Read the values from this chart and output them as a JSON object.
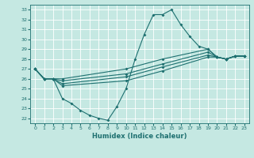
{
  "title": "",
  "xlabel": "Humidex (Indice chaleur)",
  "bg_color": "#c5e8e2",
  "line_color": "#1e7070",
  "grid_color": "#ffffff",
  "xlim": [
    -0.5,
    23.5
  ],
  "ylim": [
    21.5,
    33.5
  ],
  "xticks": [
    0,
    1,
    2,
    3,
    4,
    5,
    6,
    7,
    8,
    9,
    10,
    11,
    12,
    13,
    14,
    15,
    16,
    17,
    18,
    19,
    20,
    21,
    22,
    23
  ],
  "yticks": [
    22,
    23,
    24,
    25,
    26,
    27,
    28,
    29,
    30,
    31,
    32,
    33
  ],
  "line_big_x": [
    0,
    1,
    2,
    3,
    4,
    5,
    6,
    7,
    8,
    9,
    10,
    11,
    12,
    13,
    14,
    15,
    16,
    17,
    18,
    19,
    20,
    21,
    22,
    23
  ],
  "line_big_y": [
    27,
    26,
    26,
    24.0,
    23.5,
    22.8,
    22.3,
    22.0,
    21.8,
    23.2,
    25.0,
    28.0,
    30.5,
    32.5,
    32.5,
    33.0,
    31.5,
    30.3,
    29.3,
    29.0,
    28.2,
    28.0,
    28.3,
    28.3
  ],
  "line_upper_x": [
    0,
    1,
    2,
    3,
    10,
    14,
    19,
    20,
    21,
    22,
    23
  ],
  "line_upper_y": [
    27,
    26,
    26,
    26.0,
    27.0,
    28.0,
    29.0,
    28.2,
    28.0,
    28.3,
    28.3
  ],
  "line_mid1_x": [
    0,
    1,
    2,
    3,
    10,
    14,
    19,
    20,
    21,
    22,
    23
  ],
  "line_mid1_y": [
    27,
    26,
    26,
    25.8,
    26.5,
    27.5,
    28.7,
    28.2,
    28.0,
    28.3,
    28.3
  ],
  "line_mid2_x": [
    0,
    1,
    2,
    3,
    10,
    14,
    19,
    20,
    21,
    22,
    23
  ],
  "line_mid2_y": [
    27,
    26,
    26,
    25.5,
    26.2,
    27.2,
    28.4,
    28.2,
    28.0,
    28.3,
    28.3
  ],
  "line_lower_x": [
    0,
    1,
    2,
    3,
    10,
    14,
    19,
    20,
    21,
    22,
    23
  ],
  "line_lower_y": [
    27,
    26,
    26,
    25.3,
    25.8,
    26.8,
    28.2,
    28.2,
    28.0,
    28.3,
    28.3
  ]
}
